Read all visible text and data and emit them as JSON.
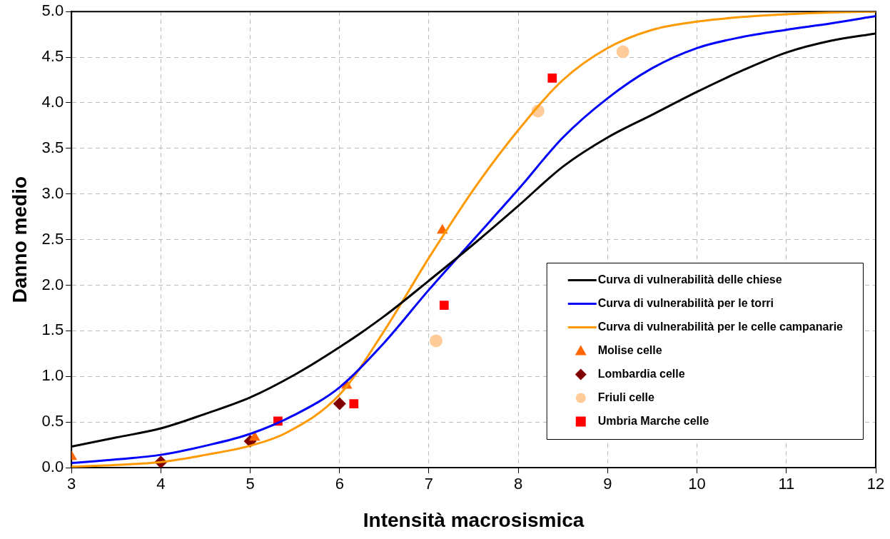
{
  "chart_data": {
    "type": "line",
    "xlabel": "Intensità macrosismica",
    "ylabel": "Danno medio",
    "xlim": [
      3,
      12
    ],
    "xticks": [
      3,
      4,
      5,
      6,
      7,
      8,
      9,
      10,
      11,
      12
    ],
    "ylim": [
      0,
      5
    ],
    "yticks": [
      {
        "value": 0,
        "label": "0.0"
      },
      {
        "value": 0.5,
        "label": "0.5"
      },
      {
        "value": 1,
        "label": "1.0"
      },
      {
        "value": 1.5,
        "label": "1.5"
      },
      {
        "value": 2,
        "label": "2.0"
      },
      {
        "value": 2.5,
        "label": "2.5"
      },
      {
        "value": 3,
        "label": "3.0"
      },
      {
        "value": 3.5,
        "label": "3.5"
      },
      {
        "value": 4,
        "label": "4.0"
      },
      {
        "value": 4.5,
        "label": "4.5"
      },
      {
        "value": 5,
        "label": "5.0"
      }
    ],
    "grid": true,
    "legend": "bottom right",
    "line_style": "solid",
    "series": [
      {
        "name": "Curva di vulnerabilità delle chiese",
        "marker": "none",
        "color": "#000000",
        "x": [
          3,
          3.5,
          4,
          4.5,
          5,
          5.5,
          6,
          6.5,
          7,
          7.5,
          8,
          8.5,
          9,
          9.5,
          10,
          10.5,
          11,
          11.5,
          12
        ],
        "values": [
          0.23,
          0.33,
          0.43,
          0.59,
          0.77,
          1.02,
          1.32,
          1.66,
          2.05,
          2.45,
          2.87,
          3.3,
          3.62,
          3.87,
          4.12,
          4.35,
          4.55,
          4.68,
          4.76
        ]
      },
      {
        "name": "Curva di vulnerabilità per le torri",
        "marker": "none",
        "color": "#0000ff",
        "x": [
          3,
          3.5,
          4,
          4.5,
          5,
          5.5,
          6,
          6.5,
          7,
          7.5,
          8,
          8.5,
          9,
          9.5,
          10,
          10.5,
          11,
          11.5,
          12
        ],
        "values": [
          0.05,
          0.09,
          0.14,
          0.24,
          0.37,
          0.58,
          0.88,
          1.37,
          1.95,
          2.5,
          3.05,
          3.62,
          4.05,
          4.38,
          4.6,
          4.72,
          4.8,
          4.87,
          4.95
        ]
      },
      {
        "name": "Curva di vulnerabilità per le celle campanarie",
        "marker": "none",
        "color": "#ff9900",
        "x": [
          3,
          3.5,
          4,
          4.5,
          5,
          5.4,
          6,
          6.5,
          7,
          7.5,
          8,
          8.5,
          9,
          9.5,
          10,
          10.5,
          11,
          11.5,
          12
        ],
        "values": [
          0.01,
          0.03,
          0.06,
          0.14,
          0.24,
          0.38,
          0.8,
          1.5,
          2.3,
          3.05,
          3.7,
          4.25,
          4.6,
          4.8,
          4.89,
          4.94,
          4.97,
          4.99,
          5.0
        ]
      },
      {
        "name": "Molise celle",
        "type": "scatter",
        "marker": "triangle",
        "color": "#ff6600",
        "x": [
          3,
          5.05,
          6.08,
          7.15
        ],
        "values": [
          0.12,
          0.33,
          0.9,
          2.6
        ]
      },
      {
        "name": "Lombardia celle",
        "type": "scatter",
        "marker": "diamond",
        "color": "#800000",
        "x": [
          4,
          5,
          6
        ],
        "values": [
          0.06,
          0.29,
          0.7
        ]
      },
      {
        "name": "Friuli celle",
        "type": "scatter",
        "marker": "circle",
        "color": "#ffcc99",
        "x": [
          7.08,
          8.22,
          9.17
        ],
        "values": [
          1.39,
          3.91,
          4.56
        ]
      },
      {
        "name": "Umbria Marche celle",
        "type": "scatter",
        "marker": "square",
        "color": "#ff0000",
        "x": [
          5.31,
          6.16,
          7.17,
          8.38
        ],
        "values": [
          0.51,
          0.7,
          1.78,
          4.27
        ]
      }
    ]
  }
}
